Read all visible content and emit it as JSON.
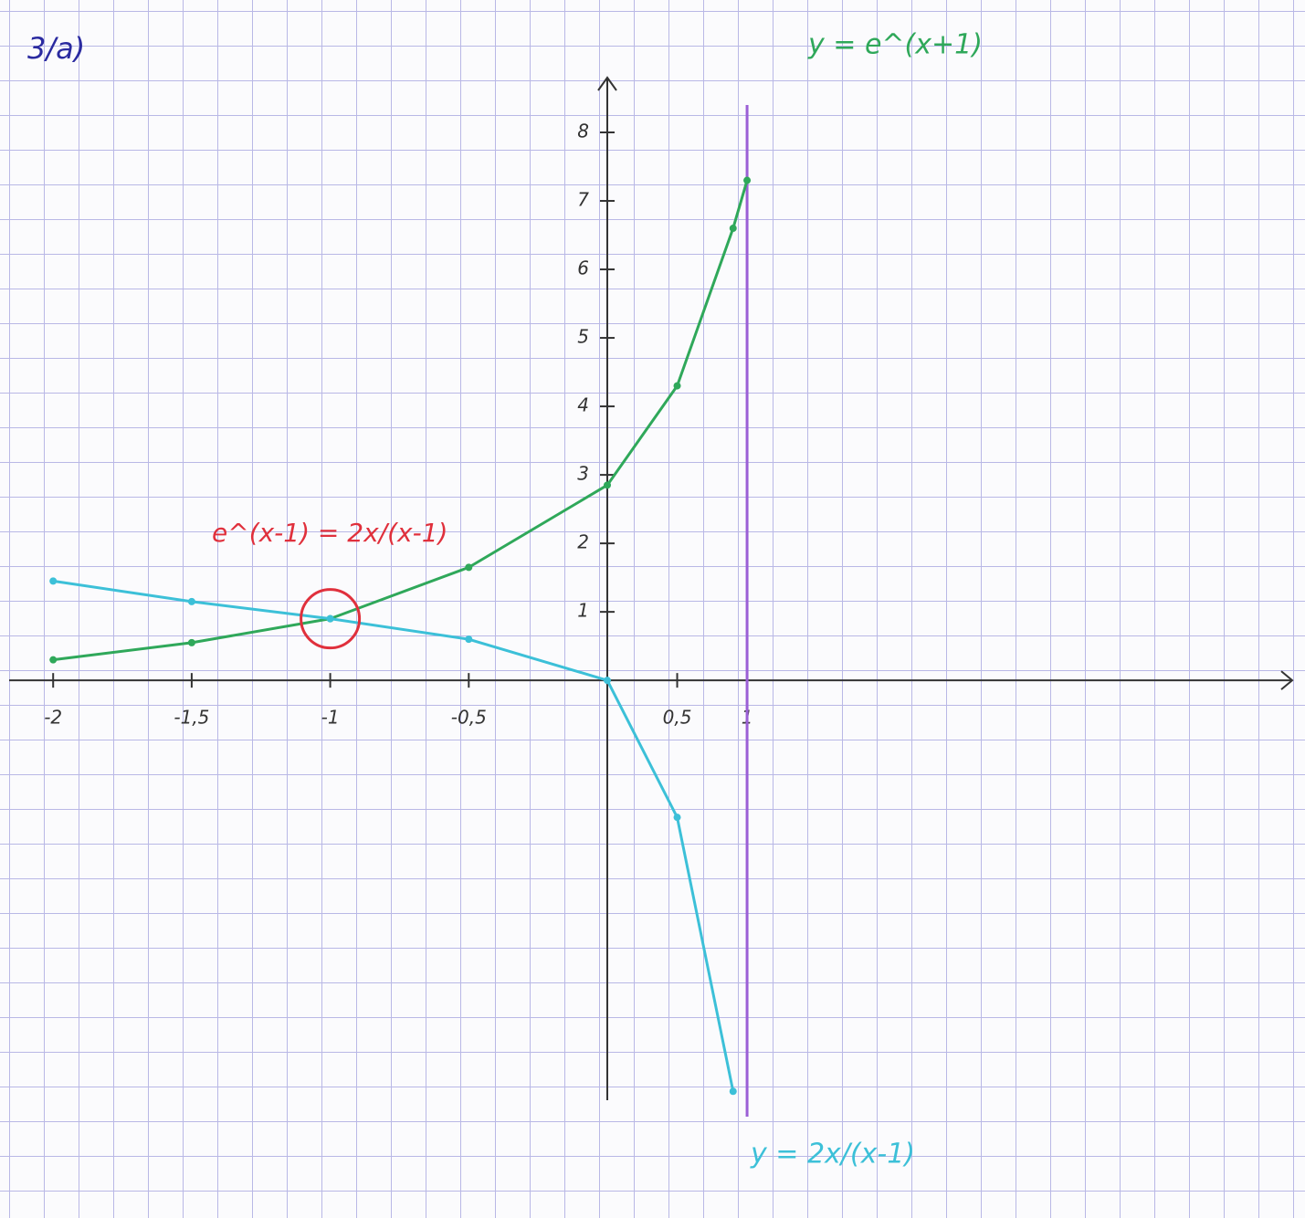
{
  "chart_data": {
    "type": "line",
    "title": "3/a)",
    "x": [
      -2,
      -1.5,
      -1,
      -0.5,
      0,
      0.5,
      0.9,
      1
    ],
    "series": [
      {
        "name": "y = e^(x+1)",
        "color": "#2fa85a",
        "values": [
          0.3,
          0.55,
          0.9,
          1.65,
          2.85,
          4.3,
          6.6,
          7.3
        ]
      },
      {
        "name": "y = 2x/(x-1)",
        "color": "#3cc0d8",
        "values": [
          1.45,
          1.15,
          0.9,
          0.6,
          0,
          -2,
          -6,
          null
        ]
      }
    ],
    "xlim": [
      -2.06,
      4.9
    ],
    "ylim": [
      -6.13,
      8.8
    ],
    "xticks": [
      {
        "value": -2,
        "label": "-2"
      },
      {
        "value": -1.5,
        "label": "-1,5"
      },
      {
        "value": -1,
        "label": "-1"
      },
      {
        "value": -0.5,
        "label": "-0,5"
      },
      {
        "value": 0.5,
        "label": "0,5"
      },
      1
    ],
    "yticks": [
      1,
      2,
      3,
      4,
      5,
      6,
      7,
      8
    ],
    "vlines": [
      {
        "x": 1,
        "color": "#9b5fd6"
      }
    ],
    "highlight": {
      "x": -1,
      "y": 0.9,
      "color": "#e0303c",
      "label": "e^(x-1) = 2x/(x-1)"
    }
  }
}
